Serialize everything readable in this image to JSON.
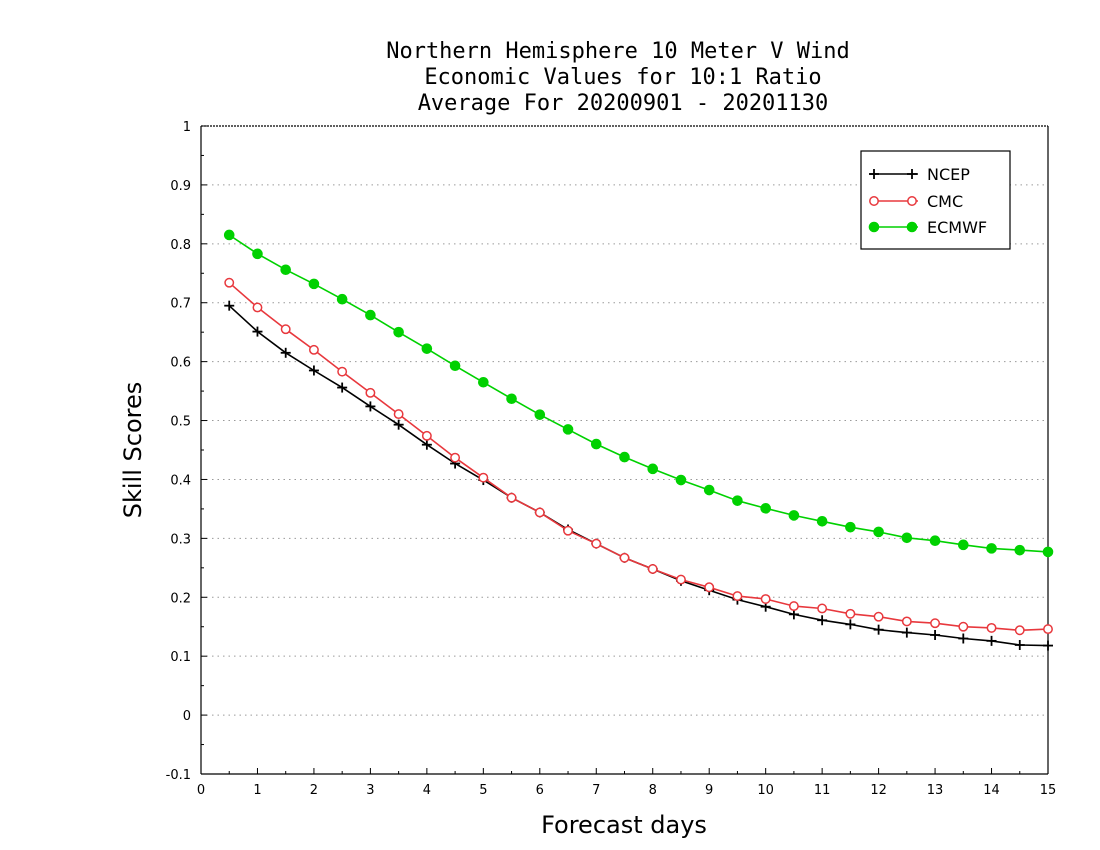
{
  "chart_data": {
    "type": "line",
    "title_lines": [
      "Northern Hemisphere 10 Meter V Wind",
      "Economic Values for 10:1 Ratio",
      "Average For 20200901 - 20201130"
    ],
    "xlabel": "Forecast days",
    "ylabel": "Skill Scores",
    "xlim": [
      0,
      15
    ],
    "ylim": [
      -0.1,
      1
    ],
    "xticks": [
      0,
      1,
      2,
      3,
      4,
      5,
      6,
      7,
      8,
      9,
      10,
      11,
      12,
      13,
      14,
      15
    ],
    "xtick_labels": [
      "0",
      "1",
      "2",
      "3",
      "4",
      "5",
      "6",
      "7",
      "8",
      "9",
      "10",
      "11",
      "12",
      "13",
      "14",
      "15"
    ],
    "yticks": [
      -0.1,
      0,
      0.1,
      0.2,
      0.3,
      0.4,
      0.5,
      0.6,
      0.7,
      0.8,
      0.9,
      1
    ],
    "ytick_labels": [
      "-0.1",
      "0",
      "0.1",
      "0.2",
      "0.3",
      "0.4",
      "0.5",
      "0.6",
      "0.7",
      "0.8",
      "0.9",
      "1"
    ],
    "grid": "horizontal-dotted",
    "legend_position": "top-right",
    "x": [
      0.5,
      1,
      1.5,
      2,
      2.5,
      3,
      3.5,
      4,
      4.5,
      5,
      5.5,
      6,
      6.5,
      7,
      7.5,
      8,
      8.5,
      9,
      9.5,
      10,
      10.5,
      11,
      11.5,
      12,
      12.5,
      13,
      13.5,
      14,
      14.5,
      15
    ],
    "series": [
      {
        "name": "NCEP",
        "color": "#000000",
        "marker": "plus",
        "values": [
          0.695,
          0.651,
          0.615,
          0.585,
          0.556,
          0.524,
          0.493,
          0.459,
          0.427,
          0.399,
          0.369,
          0.344,
          0.315,
          0.291,
          0.267,
          0.248,
          0.228,
          0.212,
          0.196,
          0.184,
          0.171,
          0.161,
          0.154,
          0.145,
          0.14,
          0.136,
          0.13,
          0.126,
          0.119,
          0.118
        ]
      },
      {
        "name": "CMC",
        "color": "#e8383d",
        "marker": "open-circle",
        "values": [
          0.734,
          0.692,
          0.655,
          0.62,
          0.583,
          0.547,
          0.511,
          0.474,
          0.437,
          0.403,
          0.369,
          0.344,
          0.313,
          0.291,
          0.267,
          0.248,
          0.23,
          0.217,
          0.202,
          0.197,
          0.185,
          0.181,
          0.172,
          0.167,
          0.159,
          0.156,
          0.15,
          0.148,
          0.144,
          0.146
        ]
      },
      {
        "name": "ECMWF",
        "color": "#00d100",
        "marker": "filled-circle",
        "values": [
          0.815,
          0.783,
          0.756,
          0.732,
          0.706,
          0.679,
          0.65,
          0.622,
          0.593,
          0.565,
          0.537,
          0.51,
          0.485,
          0.46,
          0.438,
          0.418,
          0.399,
          0.382,
          0.364,
          0.351,
          0.339,
          0.329,
          0.319,
          0.311,
          0.301,
          0.296,
          0.289,
          0.283,
          0.28,
          0.277
        ]
      }
    ]
  }
}
